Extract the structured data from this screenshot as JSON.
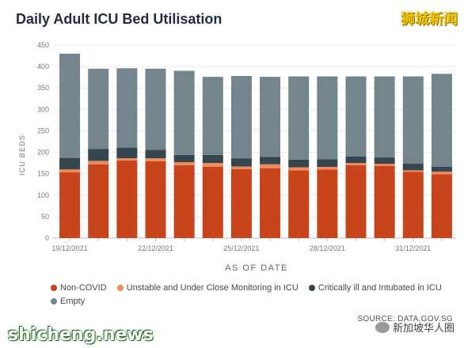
{
  "header": {
    "title": "Daily Adult ICU Bed Utilisation",
    "watermark_cn": "狮城新闻"
  },
  "footer": {
    "source": "SOURCE: DATA.GOV.SG",
    "site": "shicheng.news",
    "wechat": "新加坡华人圈"
  },
  "colors": {
    "non_covid": "#c8441a",
    "unstable": "#f08a5d",
    "critical": "#36464e",
    "empty": "#74858d"
  },
  "chart_data": {
    "type": "bar",
    "stacked": true,
    "title": "Daily Adult ICU Bed Utilisation",
    "xlabel": "AS OF DATE",
    "ylabel": "ICU BEDS",
    "ylim": [
      0,
      450
    ],
    "yticks": [
      0,
      50,
      100,
      150,
      200,
      250,
      300,
      350,
      400,
      450
    ],
    "grid": true,
    "legend_position": "bottom",
    "categories": [
      "19/12/2021",
      "20/12/2021",
      "21/12/2021",
      "22/12/2021",
      "23/12/2021",
      "24/12/2021",
      "25/12/2021",
      "26/12/2021",
      "27/12/2021",
      "28/12/2021",
      "29/12/2021",
      "30/12/2021",
      "31/12/2021",
      "01/01/2022"
    ],
    "x_tick_labels": [
      "19/12/2021",
      "",
      "",
      "22/12/2021",
      "",
      "",
      "25/12/2021",
      "",
      "",
      "28/12/2021",
      "",
      "",
      "31/12/2021",
      ""
    ],
    "series": [
      {
        "name": "Non-COVID",
        "values": [
          153,
          172,
          181,
          179,
          170,
          166,
          161,
          163,
          158,
          160,
          170,
          168,
          154,
          149
        ]
      },
      {
        "name": "Unstable and Under Close Monitoring in ICU",
        "values": [
          7,
          8,
          5,
          7,
          7,
          9,
          6,
          9,
          7,
          6,
          5,
          5,
          4,
          6
        ]
      },
      {
        "name": "Critically ill and Intubated in ICU",
        "values": [
          27,
          28,
          25,
          20,
          17,
          19,
          19,
          17,
          18,
          18,
          15,
          15,
          16,
          11
        ]
      },
      {
        "name": "Empty",
        "values": [
          243,
          187,
          185,
          189,
          196,
          182,
          192,
          187,
          194,
          193,
          187,
          189,
          203,
          217
        ]
      }
    ]
  }
}
